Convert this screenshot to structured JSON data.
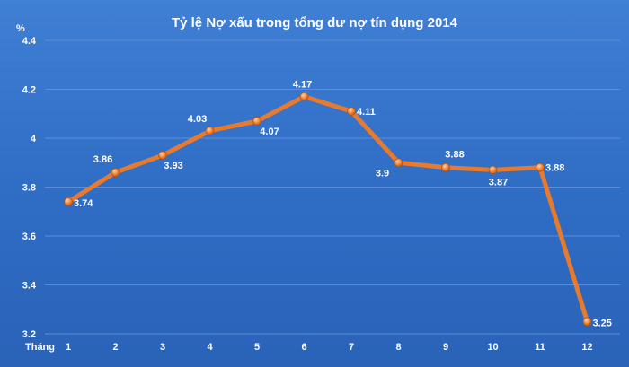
{
  "chart_data": {
    "type": "line",
    "title": "Tỷ lệ Nợ xấu trong tổng dư nợ tín dụng 2014",
    "ylabel": "%",
    "xlabel": "Tháng",
    "categories": [
      "1",
      "2",
      "3",
      "4",
      "5",
      "6",
      "7",
      "8",
      "9",
      "10",
      "11",
      "12"
    ],
    "series": [
      {
        "values": [
          3.74,
          3.86,
          3.93,
          4.03,
          4.07,
          4.17,
          4.11,
          3.9,
          3.88,
          3.87,
          3.88,
          3.25
        ]
      }
    ],
    "data_labels": [
      "3.74",
      "3.86",
      "3.93",
      "4.03",
      "4.07",
      "4.17",
      "4.11",
      "3.9",
      "3.88",
      "3.87",
      "3.88",
      "3.25"
    ],
    "ylim": [
      3.2,
      4.4
    ],
    "yticks": [
      "3.2",
      "3.4",
      "3.6",
      "3.8",
      "4",
      "4.2",
      "4.4"
    ],
    "grid": true,
    "legend": "none",
    "colors": {
      "line": "#e87a2e",
      "marker": "#f08a3e",
      "background": "#3473c9",
      "grid": "#5a8fd8",
      "text": "#ffffff"
    }
  }
}
